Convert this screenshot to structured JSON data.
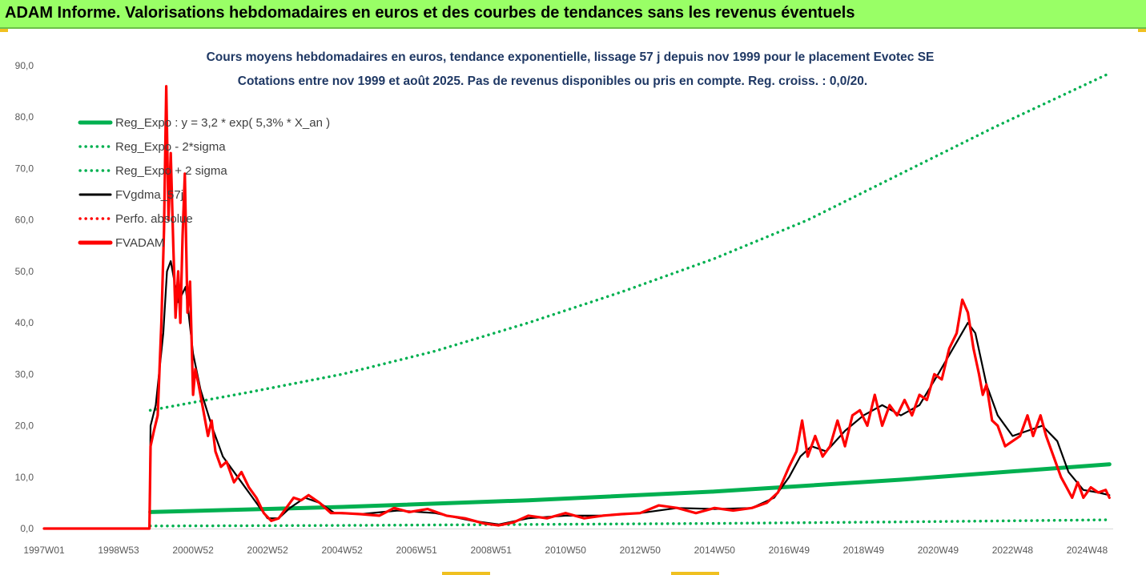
{
  "banner": {
    "title": "ADAM Informe. Valorisations hebdomadaires en euros et des courbes de tendances sans les revenus éventuels"
  },
  "colors": {
    "banner_bg": "#99ff66",
    "trend": "#00b050",
    "price": "#ff0000",
    "smooth": "#000000"
  },
  "chart_data": {
    "type": "line",
    "title": "Cours moyens hebdomadaires en euros, tendance exponentielle, lissage 57 j depuis nov 1999 pour le placement Evotec SE",
    "subtitle": "Cotations entre nov 1999 et août 2025. Pas de revenus disponibles ou pris en compte. Reg. croiss. : 0,0/20.",
    "xlabel": "",
    "ylabel": "",
    "x_range": [
      1997.0,
      2025.7
    ],
    "ylim": [
      0,
      90
    ],
    "y_ticks": [
      "0,0",
      "10,0",
      "20,0",
      "30,0",
      "40,0",
      "50,0",
      "60,0",
      "70,0",
      "80,0",
      "90,0"
    ],
    "x_ticks": [
      {
        "label": "1997W01",
        "x": 1997.0
      },
      {
        "label": "1998W53",
        "x": 1999.0
      },
      {
        "label": "2000W52",
        "x": 2001.0
      },
      {
        "label": "2002W52",
        "x": 2003.0
      },
      {
        "label": "2004W52",
        "x": 2005.0
      },
      {
        "label": "2006W51",
        "x": 2007.0
      },
      {
        "label": "2008W51",
        "x": 2009.0
      },
      {
        "label": "2010W50",
        "x": 2011.0
      },
      {
        "label": "2012W50",
        "x": 2013.0
      },
      {
        "label": "2014W50",
        "x": 2015.0
      },
      {
        "label": "2016W49",
        "x": 2017.0
      },
      {
        "label": "2018W49",
        "x": 2019.0
      },
      {
        "label": "2020W49",
        "x": 2021.0
      },
      {
        "label": "2022W48",
        "x": 2023.0
      },
      {
        "label": "2024W48",
        "x": 2025.0
      }
    ],
    "grid": false,
    "legend_position": "top-left",
    "series": [
      {
        "name": "Reg_Expo : y = 3,2 * exp( 5,3% *  X_an )",
        "style": "solid",
        "color": "#00b050",
        "points": [
          [
            1999.85,
            3.2
          ],
          [
            2005.0,
            4.2
          ],
          [
            2010.0,
            5.5
          ],
          [
            2015.0,
            7.2
          ],
          [
            2020.0,
            9.5
          ],
          [
            2025.6,
            12.5
          ]
        ]
      },
      {
        "name": "Reg_Expo - 2*sigma",
        "style": "dotted",
        "color": "#00b050",
        "points": [
          [
            1999.85,
            0.5
          ],
          [
            2005.0,
            0.6
          ],
          [
            2010.0,
            0.8
          ],
          [
            2015.0,
            1.0
          ],
          [
            2020.0,
            1.3
          ],
          [
            2025.6,
            1.7
          ]
        ]
      },
      {
        "name": "Reg_Expo + 2 sigma",
        "style": "dotted",
        "color": "#00b050",
        "points": [
          [
            1999.85,
            23.0
          ],
          [
            2002.5,
            26.5
          ],
          [
            2005.0,
            30.0
          ],
          [
            2007.5,
            34.5
          ],
          [
            2010.0,
            40.0
          ],
          [
            2012.5,
            46.0
          ],
          [
            2015.0,
            52.5
          ],
          [
            2017.5,
            60.0
          ],
          [
            2020.0,
            69.0
          ],
          [
            2022.5,
            78.0
          ],
          [
            2025.6,
            88.5
          ]
        ]
      },
      {
        "name": "FVgdma_57j",
        "style": "solid",
        "color": "#000000",
        "points": [
          [
            1997.0,
            0
          ],
          [
            1999.83,
            0
          ],
          [
            1999.86,
            20
          ],
          [
            2000.0,
            24
          ],
          [
            2000.2,
            38
          ],
          [
            2000.3,
            50
          ],
          [
            2000.4,
            52
          ],
          [
            2000.6,
            44
          ],
          [
            2000.8,
            47
          ],
          [
            2001.0,
            34
          ],
          [
            2001.2,
            27
          ],
          [
            2001.5,
            20
          ],
          [
            2001.8,
            14
          ],
          [
            2002.2,
            10
          ],
          [
            2002.6,
            6
          ],
          [
            2003.0,
            2
          ],
          [
            2003.3,
            2
          ],
          [
            2003.6,
            4
          ],
          [
            2004.0,
            6
          ],
          [
            2004.4,
            5
          ],
          [
            2004.8,
            3
          ],
          [
            2005.5,
            2.8
          ],
          [
            2006.5,
            3.5
          ],
          [
            2007.5,
            3.0
          ],
          [
            2008.5,
            1.5
          ],
          [
            2009.2,
            0.8
          ],
          [
            2010.0,
            2.0
          ],
          [
            2011.0,
            2.5
          ],
          [
            2012.0,
            2.5
          ],
          [
            2013.0,
            3.0
          ],
          [
            2014.0,
            4.0
          ],
          [
            2015.0,
            3.8
          ],
          [
            2016.0,
            4.0
          ],
          [
            2016.6,
            6.0
          ],
          [
            2017.0,
            10.0
          ],
          [
            2017.3,
            14.0
          ],
          [
            2017.6,
            16.0
          ],
          [
            2018.0,
            15.0
          ],
          [
            2018.5,
            19.0
          ],
          [
            2019.0,
            22.0
          ],
          [
            2019.5,
            24.0
          ],
          [
            2020.0,
            22.0
          ],
          [
            2020.5,
            24.0
          ],
          [
            2021.0,
            30.0
          ],
          [
            2021.4,
            35.0
          ],
          [
            2021.8,
            40.0
          ],
          [
            2022.0,
            38.0
          ],
          [
            2022.3,
            28.0
          ],
          [
            2022.6,
            22.0
          ],
          [
            2023.0,
            18.0
          ],
          [
            2023.4,
            19.0
          ],
          [
            2023.8,
            20.0
          ],
          [
            2024.2,
            17.0
          ],
          [
            2024.5,
            11.0
          ],
          [
            2024.9,
            7.5
          ],
          [
            2025.3,
            7.0
          ],
          [
            2025.6,
            6.5
          ]
        ]
      },
      {
        "name": "Perfo. absolue",
        "style": "dotted",
        "color": "#ff0000",
        "points": []
      },
      {
        "name": "FVADAM",
        "style": "solid",
        "color": "#ff0000",
        "points": [
          [
            1997.0,
            0
          ],
          [
            1999.83,
            0
          ],
          [
            1999.86,
            16
          ],
          [
            1999.95,
            19
          ],
          [
            2000.05,
            22
          ],
          [
            2000.15,
            40
          ],
          [
            2000.22,
            58
          ],
          [
            2000.28,
            86
          ],
          [
            2000.34,
            60
          ],
          [
            2000.4,
            73
          ],
          [
            2000.47,
            55
          ],
          [
            2000.53,
            41
          ],
          [
            2000.6,
            50
          ],
          [
            2000.66,
            40
          ],
          [
            2000.72,
            57
          ],
          [
            2000.78,
            69
          ],
          [
            2000.85,
            42
          ],
          [
            2000.92,
            48
          ],
          [
            2001.0,
            26
          ],
          [
            2001.06,
            31
          ],
          [
            2001.15,
            28
          ],
          [
            2001.25,
            24
          ],
          [
            2001.4,
            18
          ],
          [
            2001.5,
            21
          ],
          [
            2001.6,
            15
          ],
          [
            2001.75,
            12
          ],
          [
            2001.9,
            13
          ],
          [
            2002.1,
            9
          ],
          [
            2002.3,
            11
          ],
          [
            2002.5,
            8
          ],
          [
            2002.7,
            6
          ],
          [
            2002.9,
            3
          ],
          [
            2003.1,
            1.5
          ],
          [
            2003.3,
            2
          ],
          [
            2003.5,
            4
          ],
          [
            2003.7,
            6
          ],
          [
            2003.9,
            5.5
          ],
          [
            2004.1,
            6.5
          ],
          [
            2004.4,
            5
          ],
          [
            2004.7,
            3
          ],
          [
            2005.0,
            3
          ],
          [
            2005.5,
            2.8
          ],
          [
            2006.0,
            2.5
          ],
          [
            2006.4,
            4
          ],
          [
            2006.8,
            3.2
          ],
          [
            2007.3,
            3.8
          ],
          [
            2007.8,
            2.5
          ],
          [
            2008.3,
            2.0
          ],
          [
            2008.8,
            1.0
          ],
          [
            2009.2,
            0.6
          ],
          [
            2009.6,
            1.2
          ],
          [
            2010.0,
            2.5
          ],
          [
            2010.5,
            2.0
          ],
          [
            2011.0,
            3.0
          ],
          [
            2011.5,
            2.0
          ],
          [
            2012.0,
            2.5
          ],
          [
            2012.5,
            2.8
          ],
          [
            2013.0,
            3.0
          ],
          [
            2013.5,
            4.5
          ],
          [
            2014.0,
            4.0
          ],
          [
            2014.5,
            3.0
          ],
          [
            2015.0,
            4.0
          ],
          [
            2015.5,
            3.5
          ],
          [
            2016.0,
            4.0
          ],
          [
            2016.4,
            5.0
          ],
          [
            2016.7,
            7.0
          ],
          [
            2017.0,
            12.0
          ],
          [
            2017.2,
            15.0
          ],
          [
            2017.35,
            21.0
          ],
          [
            2017.5,
            14.0
          ],
          [
            2017.7,
            18.0
          ],
          [
            2017.9,
            14.0
          ],
          [
            2018.1,
            16.0
          ],
          [
            2018.3,
            21.0
          ],
          [
            2018.5,
            16.0
          ],
          [
            2018.7,
            22.0
          ],
          [
            2018.9,
            23.0
          ],
          [
            2019.1,
            20.0
          ],
          [
            2019.3,
            26.0
          ],
          [
            2019.5,
            20.0
          ],
          [
            2019.7,
            24.0
          ],
          [
            2019.9,
            22.0
          ],
          [
            2020.1,
            25.0
          ],
          [
            2020.3,
            22.0
          ],
          [
            2020.5,
            26.0
          ],
          [
            2020.7,
            25.0
          ],
          [
            2020.9,
            30.0
          ],
          [
            2021.1,
            29.0
          ],
          [
            2021.3,
            35.0
          ],
          [
            2021.5,
            38.0
          ],
          [
            2021.65,
            44.5
          ],
          [
            2021.8,
            42.0
          ],
          [
            2021.95,
            35.0
          ],
          [
            2022.1,
            30.0
          ],
          [
            2022.2,
            26.0
          ],
          [
            2022.3,
            28.0
          ],
          [
            2022.45,
            21.0
          ],
          [
            2022.6,
            20.0
          ],
          [
            2022.8,
            16.0
          ],
          [
            2023.0,
            17.0
          ],
          [
            2023.2,
            18.0
          ],
          [
            2023.4,
            22.0
          ],
          [
            2023.55,
            18.0
          ],
          [
            2023.75,
            22.0
          ],
          [
            2023.9,
            18.0
          ],
          [
            2024.1,
            14.0
          ],
          [
            2024.3,
            10.0
          ],
          [
            2024.45,
            8.0
          ],
          [
            2024.6,
            6.0
          ],
          [
            2024.75,
            9.0
          ],
          [
            2024.9,
            6.0
          ],
          [
            2025.1,
            8.0
          ],
          [
            2025.3,
            7.0
          ],
          [
            2025.5,
            7.5
          ],
          [
            2025.6,
            6.0
          ]
        ]
      }
    ]
  }
}
